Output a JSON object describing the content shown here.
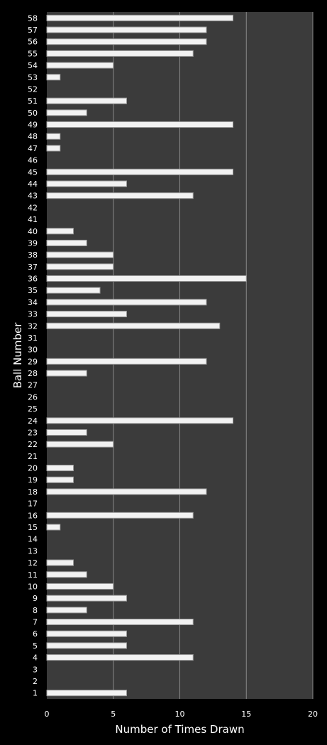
{
  "chart_data": {
    "type": "bar",
    "orientation": "horizontal",
    "categories": [
      "1",
      "2",
      "3",
      "4",
      "5",
      "6",
      "7",
      "8",
      "9",
      "10",
      "11",
      "12",
      "13",
      "14",
      "15",
      "16",
      "17",
      "18",
      "19",
      "20",
      "21",
      "22",
      "23",
      "24",
      "25",
      "26",
      "27",
      "28",
      "29",
      "30",
      "31",
      "32",
      "33",
      "34",
      "35",
      "36",
      "37",
      "38",
      "39",
      "40",
      "41",
      "42",
      "43",
      "44",
      "45",
      "46",
      "47",
      "48",
      "49",
      "50",
      "51",
      "52",
      "53",
      "54",
      "55",
      "56",
      "57",
      "58"
    ],
    "values": [
      6,
      0,
      0,
      11,
      6,
      6,
      11,
      3,
      6,
      5,
      3,
      2,
      0,
      0,
      1,
      11,
      0,
      12,
      2,
      2,
      0,
      5,
      3,
      14,
      0,
      0,
      0,
      3,
      12,
      0,
      0,
      13,
      6,
      12,
      4,
      15,
      5,
      5,
      3,
      2,
      0,
      0,
      11,
      6,
      14,
      0,
      1,
      1,
      14,
      3,
      6,
      0,
      1,
      5,
      11,
      12,
      12,
      14
    ],
    "xlabel": "Number of Times Drawn",
    "ylabel": "Ball Number",
    "xlim": [
      0,
      20
    ],
    "xticks": [
      "0",
      "5",
      "10",
      "15",
      "20"
    ],
    "grid": true,
    "legend": "none"
  },
  "colors": {
    "background": "#000000",
    "plot_area": "#3b3b3b",
    "gridline": "#8a8a8a",
    "bar_fill": "#f2f2f2",
    "bar_shadow": "#9a9a9a",
    "text": "#ffffff"
  }
}
